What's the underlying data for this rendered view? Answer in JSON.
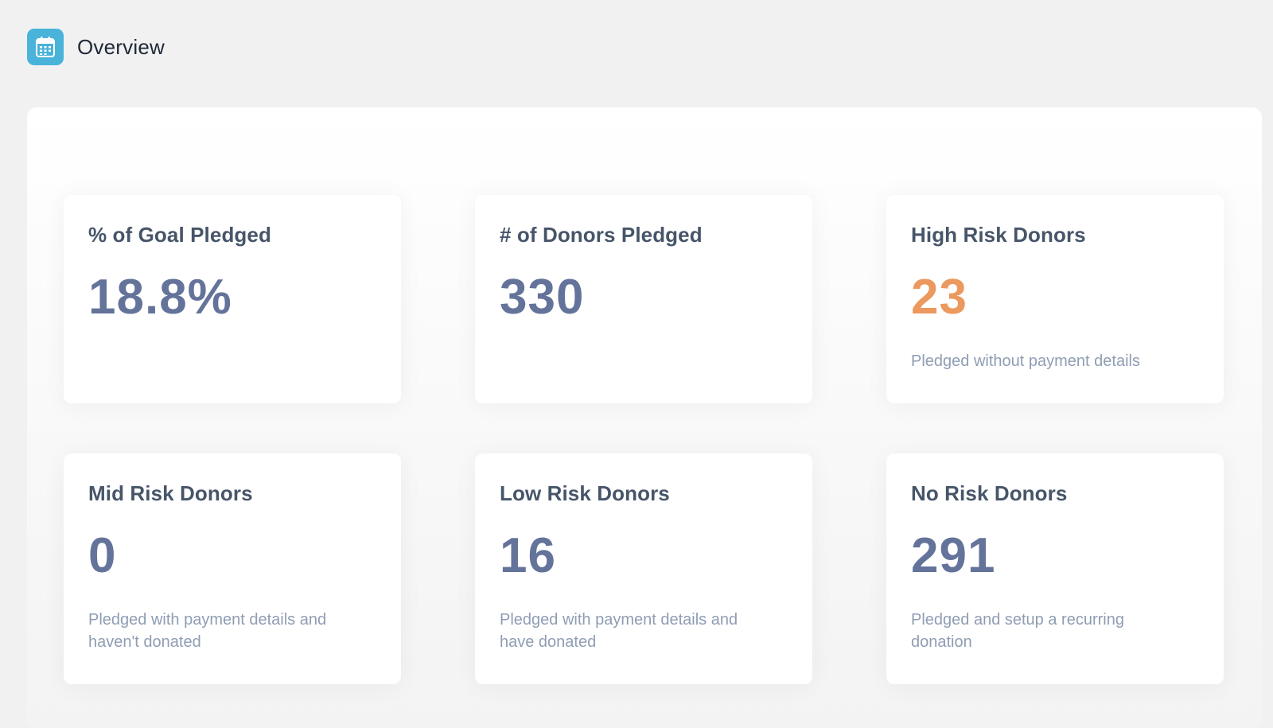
{
  "header": {
    "title": "Overview",
    "icon": "calendar-icon"
  },
  "colors": {
    "accent": "#4ab3da",
    "value": "#64739a",
    "warning": "#eb995e",
    "title": "#475569",
    "description": "#8f9db3"
  },
  "cards": [
    {
      "title": "% of Goal Pledged",
      "value": "18.8%",
      "description": ""
    },
    {
      "title": "# of Donors Pledged",
      "value": "330",
      "description": ""
    },
    {
      "title": "High Risk Donors",
      "value": "23",
      "description": "Pledged without payment details"
    },
    {
      "title": "Mid Risk Donors",
      "value": "0",
      "description": "Pledged with payment details and haven't donated"
    },
    {
      "title": "Low Risk Donors",
      "value": "16",
      "description": "Pledged with payment details and have donated"
    },
    {
      "title": "No Risk Donors",
      "value": "291",
      "description": "Pledged and setup a recurring donation"
    }
  ]
}
